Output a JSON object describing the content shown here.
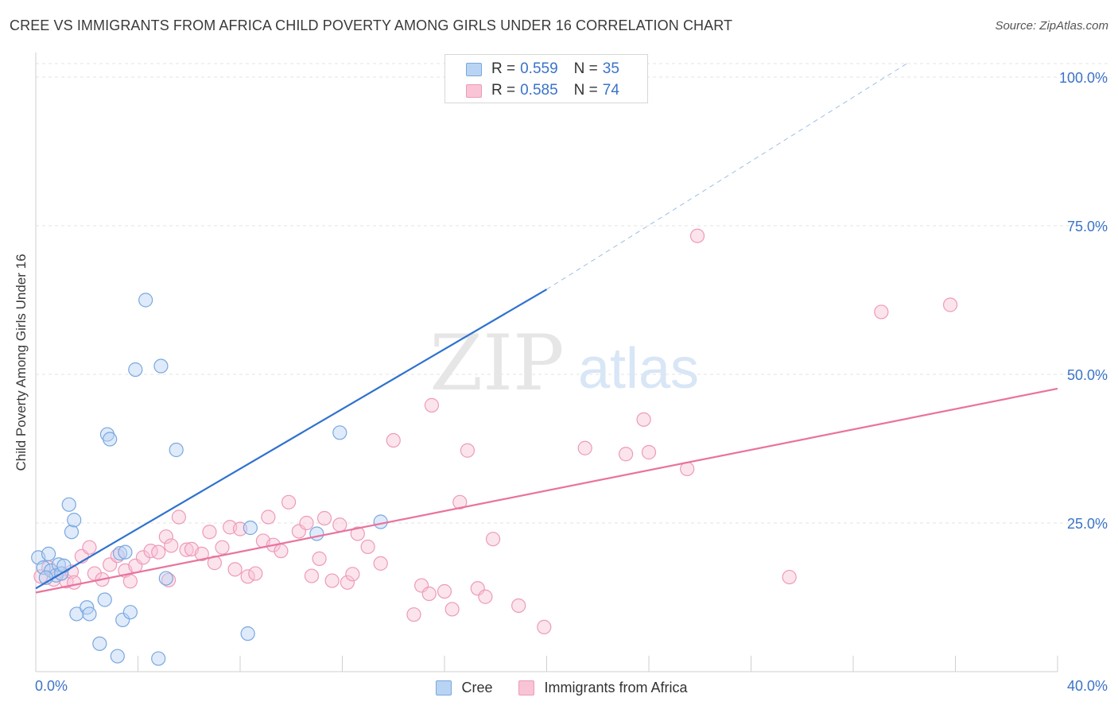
{
  "header": {
    "title": "CREE VS IMMIGRANTS FROM AFRICA CHILD POVERTY AMONG GIRLS UNDER 16 CORRELATION CHART",
    "source": "Source: ZipAtlas.com"
  },
  "watermark": {
    "zip": "ZIP",
    "atlas": "atlas"
  },
  "legend_stats": [
    {
      "r_label": "R =",
      "r_value": "0.559",
      "n_label": "N =",
      "n_value": "35"
    },
    {
      "r_label": "R =",
      "r_value": "0.585",
      "n_label": "N =",
      "n_value": "74"
    }
  ],
  "colors": {
    "cree_fill": "#b9d3f3",
    "cree_stroke": "#7aa7e0",
    "cree_line": "#2f72cf",
    "africa_fill": "#f8c4d6",
    "africa_stroke": "#ee9ab8",
    "africa_line": "#e8739e",
    "tick_label": "#3a73c9",
    "grid": "#e3e3e3"
  },
  "chart_data": {
    "type": "scatter",
    "title": "CREE VS IMMIGRANTS FROM AFRICA CHILD POVERTY AMONG GIRLS UNDER 16 CORRELATION CHART",
    "xlabel": "",
    "ylabel": "Child Poverty Among Girls Under 16",
    "xlim": [
      0,
      40
    ],
    "ylim": [
      0,
      100
    ],
    "x_tick_labels": [
      "0.0%",
      "40.0%"
    ],
    "y_ticks": [
      25,
      50,
      75,
      100
    ],
    "y_tick_labels": [
      "25.0%",
      "50.0%",
      "75.0%",
      "100.0%"
    ],
    "grid": true,
    "legend_position": "bottom",
    "series": [
      {
        "name": "Cree",
        "r": 0.559,
        "n": 35,
        "trend": {
          "x0": 0,
          "y0": 14.0,
          "x1": 20,
          "y1": 64.3,
          "dashed_to_x": 34.1,
          "dashed_to_y": 100
        },
        "points": [
          [
            0.1,
            19.2
          ],
          [
            0.3,
            17.5
          ],
          [
            0.5,
            19.8
          ],
          [
            0.6,
            17.0
          ],
          [
            0.8,
            16.2
          ],
          [
            0.9,
            18.0
          ],
          [
            1.0,
            16.5
          ],
          [
            1.1,
            17.8
          ],
          [
            1.3,
            28.1
          ],
          [
            1.4,
            23.5
          ],
          [
            1.5,
            25.5
          ],
          [
            1.6,
            9.7
          ],
          [
            2.0,
            10.8
          ],
          [
            2.1,
            9.7
          ],
          [
            2.5,
            4.7
          ],
          [
            2.7,
            12.1
          ],
          [
            2.8,
            39.9
          ],
          [
            2.9,
            39.1
          ],
          [
            3.2,
            2.6
          ],
          [
            3.3,
            19.9
          ],
          [
            3.4,
            8.7
          ],
          [
            3.5,
            20.1
          ],
          [
            3.7,
            10.0
          ],
          [
            3.9,
            50.8
          ],
          [
            4.3,
            62.5
          ],
          [
            4.8,
            2.2
          ],
          [
            4.9,
            51.4
          ],
          [
            5.1,
            15.7
          ],
          [
            5.5,
            37.3
          ],
          [
            8.3,
            6.4
          ],
          [
            8.4,
            24.2
          ],
          [
            11.0,
            23.2
          ],
          [
            11.9,
            40.2
          ],
          [
            13.5,
            25.2
          ],
          [
            0.4,
            15.8
          ]
        ]
      },
      {
        "name": "Immigrants from Africa",
        "r": 0.585,
        "n": 74,
        "trend": {
          "x0": 0,
          "y0": 13.3,
          "x1": 40,
          "y1": 47.6
        },
        "points": [
          [
            0.2,
            16.0
          ],
          [
            0.5,
            17.5
          ],
          [
            0.7,
            15.5
          ],
          [
            1.0,
            16.5
          ],
          [
            1.2,
            15.2
          ],
          [
            1.4,
            16.8
          ],
          [
            1.5,
            15.0
          ],
          [
            1.8,
            19.4
          ],
          [
            2.1,
            20.9
          ],
          [
            2.3,
            16.5
          ],
          [
            2.6,
            15.5
          ],
          [
            2.9,
            18.0
          ],
          [
            3.2,
            19.5
          ],
          [
            3.5,
            17.0
          ],
          [
            3.7,
            15.2
          ],
          [
            3.9,
            17.8
          ],
          [
            4.2,
            19.2
          ],
          [
            4.5,
            20.3
          ],
          [
            4.8,
            20.1
          ],
          [
            5.1,
            22.7
          ],
          [
            5.3,
            21.2
          ],
          [
            5.6,
            26.0
          ],
          [
            5.9,
            20.5
          ],
          [
            6.1,
            20.6
          ],
          [
            6.5,
            19.8
          ],
          [
            6.8,
            23.5
          ],
          [
            7.0,
            18.3
          ],
          [
            7.3,
            20.9
          ],
          [
            7.6,
            24.3
          ],
          [
            7.8,
            17.2
          ],
          [
            8.0,
            24.0
          ],
          [
            8.3,
            16.0
          ],
          [
            8.6,
            16.5
          ],
          [
            8.9,
            22.0
          ],
          [
            9.1,
            26.0
          ],
          [
            9.3,
            21.3
          ],
          [
            9.6,
            20.3
          ],
          [
            9.9,
            28.5
          ],
          [
            10.3,
            23.6
          ],
          [
            10.6,
            25.0
          ],
          [
            10.8,
            16.1
          ],
          [
            11.1,
            19.0
          ],
          [
            11.3,
            25.8
          ],
          [
            11.6,
            15.3
          ],
          [
            11.9,
            24.7
          ],
          [
            12.2,
            15.0
          ],
          [
            12.4,
            16.4
          ],
          [
            12.6,
            23.2
          ],
          [
            13.0,
            21.0
          ],
          [
            13.5,
            18.2
          ],
          [
            14.0,
            38.9
          ],
          [
            14.8,
            9.6
          ],
          [
            15.1,
            14.5
          ],
          [
            15.4,
            13.1
          ],
          [
            15.5,
            44.8
          ],
          [
            16.0,
            13.5
          ],
          [
            16.3,
            10.5
          ],
          [
            16.6,
            28.5
          ],
          [
            16.9,
            37.2
          ],
          [
            17.3,
            14.0
          ],
          [
            17.6,
            12.6
          ],
          [
            17.9,
            22.3
          ],
          [
            18.9,
            11.1
          ],
          [
            19.9,
            7.5
          ],
          [
            21.5,
            37.6
          ],
          [
            23.1,
            36.6
          ],
          [
            23.8,
            42.4
          ],
          [
            24.0,
            36.9
          ],
          [
            25.5,
            34.1
          ],
          [
            25.9,
            73.3
          ],
          [
            29.5,
            15.9
          ],
          [
            33.1,
            60.5
          ],
          [
            35.8,
            61.7
          ],
          [
            5.2,
            15.4
          ]
        ]
      }
    ]
  }
}
